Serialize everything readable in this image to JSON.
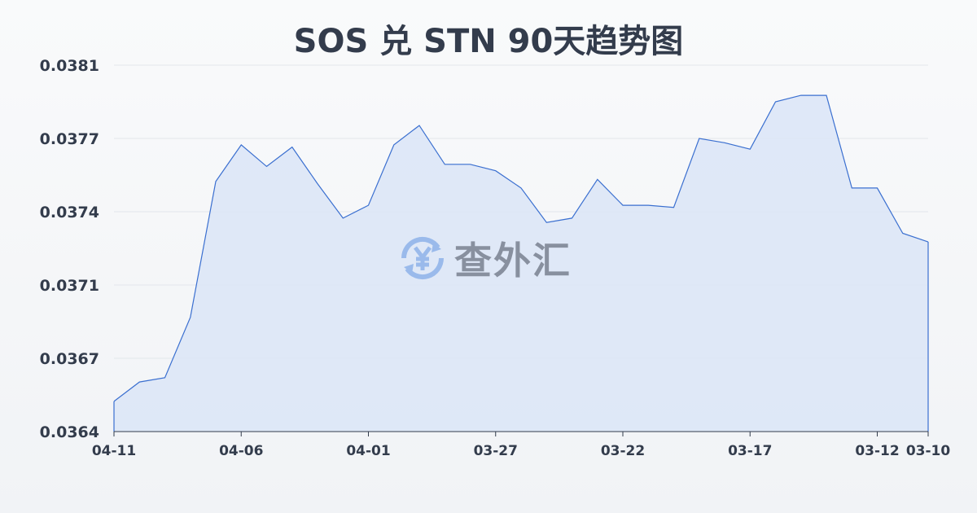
{
  "chart_data": {
    "type": "area",
    "title": "SOS 兑 STN 90天趋势图",
    "xlabel": "",
    "ylabel": "",
    "x": [
      "04-11",
      "04-10",
      "04-09",
      "04-08",
      "04-07",
      "04-06",
      "04-05",
      "04-04",
      "04-03",
      "04-02",
      "04-01",
      "03-31",
      "03-30",
      "03-29",
      "03-28",
      "03-27",
      "03-26",
      "03-25",
      "03-24",
      "03-23",
      "03-22",
      "03-21",
      "03-20",
      "03-19",
      "03-18",
      "03-17",
      "03-16",
      "03-15",
      "03-14",
      "03-13",
      "03-12",
      "03-11",
      "03-10"
    ],
    "values": [
      0.03654,
      0.03663,
      0.03665,
      0.03693,
      0.03756,
      0.03773,
      0.03763,
      0.03772,
      0.03755,
      0.03739,
      0.03745,
      0.03773,
      0.03782,
      0.03764,
      0.03764,
      0.03761,
      0.03753,
      0.03737,
      0.03739,
      0.03757,
      0.03745,
      0.03745,
      0.03744,
      0.03776,
      0.03774,
      0.03771,
      0.03793,
      0.03796,
      0.03796,
      0.03753,
      0.03753,
      0.03732,
      0.03728
    ],
    "x_tick_labels": [
      "04-11",
      "04-06",
      "04-01",
      "03-27",
      "03-22",
      "03-17",
      "03-12",
      "03-10"
    ],
    "y_tick_labels": [
      "0.0381",
      "0.0377",
      "0.0374",
      "0.0371",
      "0.0367",
      "0.0364"
    ],
    "ylim": [
      0.0364,
      0.0381
    ],
    "grid": true,
    "legend": "none",
    "colors": {
      "line": "#3a6fd0",
      "fill": "#dbe5f7"
    }
  },
  "watermark": {
    "text": "查外汇",
    "icon": "yen-exchange-icon"
  }
}
